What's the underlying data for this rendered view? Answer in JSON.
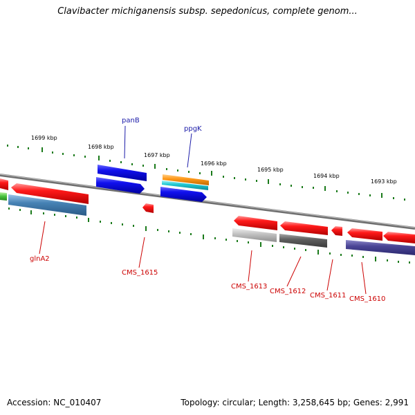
{
  "title": "Clavibacter michiganensis subsp. sepedonicus, complete genom...",
  "footer": {
    "accession": "Accession: NC_010407",
    "summary": "Topology: circular; Length: 3,258,645 bp; Genes: 2,991"
  },
  "ruler_labels": [
    "1699 kbp",
    "1698 kbp",
    "1697 kbp",
    "1696 kbp",
    "1695 kbp",
    "1694 kbp",
    "1693 kbp"
  ],
  "gene_labels": {
    "panB": "panB",
    "ppgK": "ppgK",
    "glnA2": "glnA2",
    "CMS_1615": "CMS_1615",
    "CMS_1613": "CMS_1613",
    "CMS_1612": "CMS_1612",
    "CMS_1611": "CMS_1611",
    "CMS_1610": "CMS_1610"
  },
  "colors": {
    "label_blue": "#1a1aa8",
    "label_red": "#cc0000",
    "tick_green": "#1a7a1a",
    "backbone": "#8a8a8a"
  }
}
